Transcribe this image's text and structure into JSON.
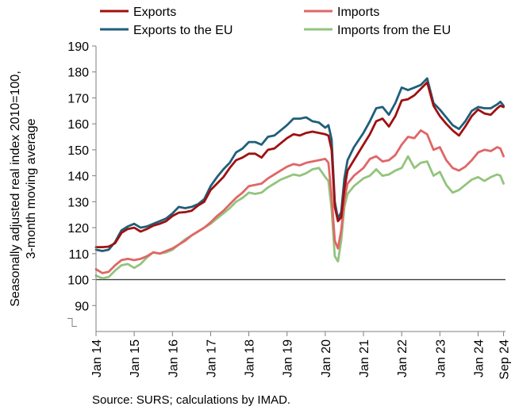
{
  "chart_data": {
    "type": "line",
    "title": "",
    "ylabel_lines": [
      "Seasonally adjusted real index 2010=100,",
      "3-month moving average"
    ],
    "xlabel": "",
    "ylim": [
      80,
      190
    ],
    "yticks": [
      90,
      100,
      110,
      120,
      130,
      140,
      150,
      160,
      170,
      180,
      190
    ],
    "x_range": [
      "2014-01",
      "2024-09"
    ],
    "x_tick_labels": [
      "Jan 14",
      "Jan 15",
      "Jan 16",
      "Jan 17",
      "Jan 18",
      "Jan 19",
      "Jan 20",
      "Jan 21",
      "Jan 22",
      "Jan 23",
      "Jan 24",
      "Sep 24"
    ],
    "x_tick_dates": [
      "2014-01",
      "2015-01",
      "2016-01",
      "2017-01",
      "2018-01",
      "2019-01",
      "2020-01",
      "2021-01",
      "2022-01",
      "2023-01",
      "2024-01",
      "2024-09"
    ],
    "reference_line": 100,
    "grid": false,
    "axis_break": true,
    "legend_position": "top",
    "source": "Source: SURS; calculations by IMAD.",
    "series": [
      {
        "name": "Exports",
        "color": "#a01010",
        "points": [
          [
            "2014-01",
            112.5
          ],
          [
            "2014-03",
            112.5
          ],
          [
            "2014-05",
            112.7
          ],
          [
            "2014-07",
            114.0
          ],
          [
            "2014-09",
            118.0
          ],
          [
            "2014-11",
            119.5
          ],
          [
            "2015-01",
            120.0
          ],
          [
            "2015-03",
            118.5
          ],
          [
            "2015-05",
            119.5
          ],
          [
            "2015-07",
            120.8
          ],
          [
            "2015-09",
            121.5
          ],
          [
            "2015-11",
            122.5
          ],
          [
            "2016-01",
            124.5
          ],
          [
            "2016-03",
            125.8
          ],
          [
            "2016-05",
            126.0
          ],
          [
            "2016-07",
            126.5
          ],
          [
            "2016-09",
            128.5
          ],
          [
            "2016-11",
            130.0
          ],
          [
            "2017-01",
            134.5
          ],
          [
            "2017-03",
            137.0
          ],
          [
            "2017-05",
            139.5
          ],
          [
            "2017-07",
            143.0
          ],
          [
            "2017-09",
            146.0
          ],
          [
            "2017-11",
            147.0
          ],
          [
            "2018-01",
            148.5
          ],
          [
            "2018-03",
            148.5
          ],
          [
            "2018-05",
            147.0
          ],
          [
            "2018-07",
            150.0
          ],
          [
            "2018-09",
            150.5
          ],
          [
            "2018-11",
            152.5
          ],
          [
            "2019-01",
            154.5
          ],
          [
            "2019-03",
            156.0
          ],
          [
            "2019-05",
            155.5
          ],
          [
            "2019-07",
            156.5
          ],
          [
            "2019-09",
            157.0
          ],
          [
            "2019-11",
            156.5
          ],
          [
            "2020-01",
            156.0
          ],
          [
            "2020-02",
            155.5
          ],
          [
            "2020-03",
            150.0
          ],
          [
            "2020-04",
            128.0
          ],
          [
            "2020-05",
            122.5
          ],
          [
            "2020-06",
            124.0
          ],
          [
            "2020-07",
            135.0
          ],
          [
            "2020-08",
            142.0
          ],
          [
            "2020-10",
            146.0
          ],
          [
            "2021-01",
            152.0
          ],
          [
            "2021-03",
            156.0
          ],
          [
            "2021-05",
            161.0
          ],
          [
            "2021-07",
            162.0
          ],
          [
            "2021-09",
            159.0
          ],
          [
            "2021-11",
            163.0
          ],
          [
            "2022-01",
            169.0
          ],
          [
            "2022-03",
            169.5
          ],
          [
            "2022-05",
            171.0
          ],
          [
            "2022-07",
            173.5
          ],
          [
            "2022-09",
            176.0
          ],
          [
            "2022-11",
            167.0
          ],
          [
            "2023-01",
            163.0
          ],
          [
            "2023-03",
            160.0
          ],
          [
            "2023-05",
            157.5
          ],
          [
            "2023-07",
            155.5
          ],
          [
            "2023-09",
            159.0
          ],
          [
            "2023-11",
            163.0
          ],
          [
            "2024-01",
            165.5
          ],
          [
            "2024-03",
            164.0
          ],
          [
            "2024-05",
            163.5
          ],
          [
            "2024-07",
            166.0
          ],
          [
            "2024-08",
            167.0
          ],
          [
            "2024-09",
            166.5
          ]
        ]
      },
      {
        "name": "Imports",
        "color": "#e06666",
        "points": [
          [
            "2014-01",
            104.0
          ],
          [
            "2014-03",
            102.5
          ],
          [
            "2014-05",
            103.0
          ],
          [
            "2014-07",
            105.5
          ],
          [
            "2014-09",
            107.5
          ],
          [
            "2014-11",
            108.0
          ],
          [
            "2015-01",
            107.5
          ],
          [
            "2015-03",
            108.0
          ],
          [
            "2015-05",
            109.0
          ],
          [
            "2015-07",
            110.5
          ],
          [
            "2015-09",
            110.0
          ],
          [
            "2015-11",
            111.0
          ],
          [
            "2016-01",
            112.0
          ],
          [
            "2016-03",
            113.5
          ],
          [
            "2016-05",
            115.0
          ],
          [
            "2016-07",
            117.0
          ],
          [
            "2016-09",
            118.5
          ],
          [
            "2016-11",
            120.0
          ],
          [
            "2017-01",
            122.0
          ],
          [
            "2017-03",
            124.5
          ],
          [
            "2017-05",
            126.5
          ],
          [
            "2017-07",
            129.0
          ],
          [
            "2017-09",
            131.5
          ],
          [
            "2017-11",
            133.5
          ],
          [
            "2018-01",
            136.0
          ],
          [
            "2018-03",
            136.5
          ],
          [
            "2018-05",
            137.0
          ],
          [
            "2018-07",
            139.0
          ],
          [
            "2018-09",
            140.5
          ],
          [
            "2018-11",
            142.0
          ],
          [
            "2019-01",
            143.5
          ],
          [
            "2019-03",
            144.5
          ],
          [
            "2019-05",
            144.0
          ],
          [
            "2019-07",
            145.0
          ],
          [
            "2019-09",
            145.5
          ],
          [
            "2019-11",
            146.0
          ],
          [
            "2020-01",
            146.5
          ],
          [
            "2020-02",
            145.0
          ],
          [
            "2020-03",
            132.0
          ],
          [
            "2020-04",
            115.0
          ],
          [
            "2020-05",
            112.0
          ],
          [
            "2020-06",
            119.0
          ],
          [
            "2020-07",
            131.0
          ],
          [
            "2020-08",
            137.0
          ],
          [
            "2020-10",
            140.0
          ],
          [
            "2021-01",
            143.0
          ],
          [
            "2021-03",
            146.5
          ],
          [
            "2021-05",
            147.5
          ],
          [
            "2021-07",
            145.5
          ],
          [
            "2021-09",
            146.0
          ],
          [
            "2021-11",
            148.0
          ],
          [
            "2022-01",
            152.0
          ],
          [
            "2022-03",
            155.0
          ],
          [
            "2022-05",
            154.5
          ],
          [
            "2022-07",
            157.5
          ],
          [
            "2022-09",
            156.0
          ],
          [
            "2022-11",
            150.0
          ],
          [
            "2023-01",
            151.0
          ],
          [
            "2023-03",
            146.0
          ],
          [
            "2023-05",
            143.0
          ],
          [
            "2023-07",
            142.0
          ],
          [
            "2023-09",
            143.5
          ],
          [
            "2023-11",
            146.0
          ],
          [
            "2024-01",
            149.0
          ],
          [
            "2024-03",
            150.0
          ],
          [
            "2024-05",
            149.5
          ],
          [
            "2024-07",
            151.0
          ],
          [
            "2024-08",
            150.5
          ],
          [
            "2024-09",
            147.5
          ]
        ]
      },
      {
        "name": "Exports to the EU",
        "color": "#1f5f7a",
        "points": [
          [
            "2014-01",
            111.5
          ],
          [
            "2014-03",
            111.0
          ],
          [
            "2014-05",
            111.5
          ],
          [
            "2014-07",
            114.5
          ],
          [
            "2014-09",
            119.0
          ],
          [
            "2014-11",
            120.5
          ],
          [
            "2015-01",
            121.5
          ],
          [
            "2015-03",
            120.0
          ],
          [
            "2015-05",
            120.5
          ],
          [
            "2015-07",
            121.5
          ],
          [
            "2015-09",
            122.5
          ],
          [
            "2015-11",
            123.5
          ],
          [
            "2016-01",
            125.5
          ],
          [
            "2016-03",
            128.0
          ],
          [
            "2016-05",
            127.5
          ],
          [
            "2016-07",
            128.0
          ],
          [
            "2016-09",
            129.0
          ],
          [
            "2016-11",
            131.0
          ],
          [
            "2017-01",
            136.0
          ],
          [
            "2017-03",
            139.5
          ],
          [
            "2017-05",
            142.5
          ],
          [
            "2017-07",
            145.0
          ],
          [
            "2017-09",
            149.0
          ],
          [
            "2017-11",
            150.5
          ],
          [
            "2018-01",
            153.0
          ],
          [
            "2018-03",
            153.0
          ],
          [
            "2018-05",
            152.0
          ],
          [
            "2018-07",
            155.0
          ],
          [
            "2018-09",
            155.5
          ],
          [
            "2018-11",
            157.5
          ],
          [
            "2019-01",
            159.5
          ],
          [
            "2019-03",
            162.0
          ],
          [
            "2019-05",
            162.0
          ],
          [
            "2019-07",
            162.5
          ],
          [
            "2019-09",
            161.0
          ],
          [
            "2019-11",
            160.5
          ],
          [
            "2020-01",
            158.5
          ],
          [
            "2020-02",
            159.5
          ],
          [
            "2020-03",
            154.0
          ],
          [
            "2020-04",
            130.0
          ],
          [
            "2020-05",
            123.5
          ],
          [
            "2020-06",
            126.0
          ],
          [
            "2020-07",
            139.0
          ],
          [
            "2020-08",
            146.0
          ],
          [
            "2020-10",
            151.0
          ],
          [
            "2021-01",
            156.5
          ],
          [
            "2021-03",
            161.0
          ],
          [
            "2021-05",
            166.0
          ],
          [
            "2021-07",
            166.5
          ],
          [
            "2021-09",
            163.5
          ],
          [
            "2021-11",
            168.0
          ],
          [
            "2022-01",
            174.0
          ],
          [
            "2022-03",
            173.0
          ],
          [
            "2022-05",
            174.0
          ],
          [
            "2022-07",
            175.0
          ],
          [
            "2022-09",
            177.5
          ],
          [
            "2022-11",
            168.0
          ],
          [
            "2023-01",
            165.5
          ],
          [
            "2023-03",
            162.5
          ],
          [
            "2023-05",
            159.5
          ],
          [
            "2023-07",
            158.0
          ],
          [
            "2023-09",
            161.0
          ],
          [
            "2023-11",
            165.0
          ],
          [
            "2024-01",
            166.5
          ],
          [
            "2024-03",
            166.0
          ],
          [
            "2024-05",
            166.0
          ],
          [
            "2024-07",
            167.5
          ],
          [
            "2024-08",
            168.5
          ],
          [
            "2024-09",
            167.0
          ]
        ]
      },
      {
        "name": "Imports from the EU",
        "color": "#93c47d",
        "points": [
          [
            "2014-01",
            101.5
          ],
          [
            "2014-03",
            100.5
          ],
          [
            "2014-05",
            101.0
          ],
          [
            "2014-07",
            103.5
          ],
          [
            "2014-09",
            105.5
          ],
          [
            "2014-11",
            106.0
          ],
          [
            "2015-01",
            104.5
          ],
          [
            "2015-03",
            106.0
          ],
          [
            "2015-05",
            108.5
          ],
          [
            "2015-07",
            110.5
          ],
          [
            "2015-09",
            110.0
          ],
          [
            "2015-11",
            110.5
          ],
          [
            "2016-01",
            111.5
          ],
          [
            "2016-03",
            113.5
          ],
          [
            "2016-05",
            115.5
          ],
          [
            "2016-07",
            117.0
          ],
          [
            "2016-09",
            118.5
          ],
          [
            "2016-11",
            120.0
          ],
          [
            "2017-01",
            121.5
          ],
          [
            "2017-03",
            123.5
          ],
          [
            "2017-05",
            125.5
          ],
          [
            "2017-07",
            127.5
          ],
          [
            "2017-09",
            130.0
          ],
          [
            "2017-11",
            131.5
          ],
          [
            "2018-01",
            133.5
          ],
          [
            "2018-03",
            133.0
          ],
          [
            "2018-05",
            133.5
          ],
          [
            "2018-07",
            135.5
          ],
          [
            "2018-09",
            137.0
          ],
          [
            "2018-11",
            138.5
          ],
          [
            "2019-01",
            139.5
          ],
          [
            "2019-03",
            140.5
          ],
          [
            "2019-05",
            140.0
          ],
          [
            "2019-07",
            141.0
          ],
          [
            "2019-09",
            142.5
          ],
          [
            "2019-11",
            143.0
          ],
          [
            "2020-01",
            139.5
          ],
          [
            "2020-02",
            138.0
          ],
          [
            "2020-03",
            127.0
          ],
          [
            "2020-04",
            109.0
          ],
          [
            "2020-05",
            107.0
          ],
          [
            "2020-06",
            115.0
          ],
          [
            "2020-07",
            128.0
          ],
          [
            "2020-08",
            133.0
          ],
          [
            "2020-10",
            136.0
          ],
          [
            "2021-01",
            139.0
          ],
          [
            "2021-03",
            140.0
          ],
          [
            "2021-05",
            142.5
          ],
          [
            "2021-07",
            140.0
          ],
          [
            "2021-09",
            140.5
          ],
          [
            "2021-11",
            142.0
          ],
          [
            "2022-01",
            143.0
          ],
          [
            "2022-03",
            147.5
          ],
          [
            "2022-05",
            143.0
          ],
          [
            "2022-07",
            145.0
          ],
          [
            "2022-09",
            145.5
          ],
          [
            "2022-11",
            140.0
          ],
          [
            "2023-01",
            141.5
          ],
          [
            "2023-03",
            136.5
          ],
          [
            "2023-05",
            133.5
          ],
          [
            "2023-07",
            134.5
          ],
          [
            "2023-09",
            136.5
          ],
          [
            "2023-11",
            138.5
          ],
          [
            "2024-01",
            139.5
          ],
          [
            "2024-03",
            138.0
          ],
          [
            "2024-05",
            139.5
          ],
          [
            "2024-07",
            140.5
          ],
          [
            "2024-08",
            140.0
          ],
          [
            "2024-09",
            137.0
          ]
        ]
      }
    ]
  }
}
